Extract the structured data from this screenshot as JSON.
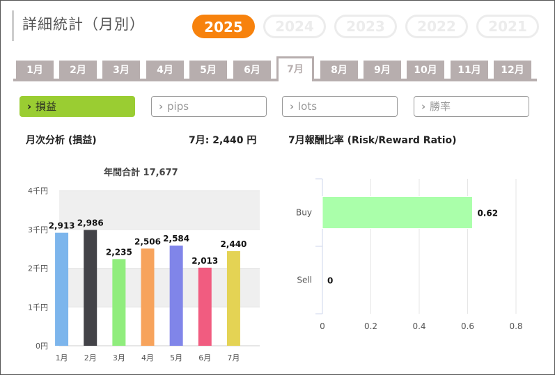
{
  "header": {
    "title": "詳細統計（月別）",
    "years": [
      {
        "label": "2025",
        "active": true
      },
      {
        "label": "2024",
        "active": false
      },
      {
        "label": "2023",
        "active": false
      },
      {
        "label": "2022",
        "active": false
      },
      {
        "label": "2021",
        "active": false
      }
    ]
  },
  "months": [
    "1月",
    "2月",
    "3月",
    "4月",
    "5月",
    "6月",
    "7月",
    "8月",
    "9月",
    "10月",
    "11月",
    "12月"
  ],
  "active_month_index": 6,
  "metrics": [
    {
      "label": "損益",
      "active": true
    },
    {
      "label": "pips",
      "active": false
    },
    {
      "label": "lots",
      "active": false
    },
    {
      "label": "勝率",
      "active": false
    }
  ],
  "left_panel": {
    "heading": "月次分析 (損益)",
    "month_value": "7月:  2,440 円",
    "annual_total": "年間合計 17,677"
  },
  "right_panel": {
    "heading": "7月報酬比率 (Risk/Reward Ratio)"
  },
  "chart_data": [
    {
      "type": "bar",
      "categories": [
        "1月",
        "2月",
        "3月",
        "4月",
        "5月",
        "6月",
        "7月"
      ],
      "values": [
        2913,
        2986,
        2235,
        2506,
        2584,
        2013,
        2440
      ],
      "value_labels": [
        "2,913",
        "2,986",
        "2,235",
        "2,506",
        "2,584",
        "2,013",
        "2,440"
      ],
      "colors": [
        "#7cb5ec",
        "#434348",
        "#90ed7d",
        "#f7a35c",
        "#8085e9",
        "#f15c80",
        "#e4d354"
      ],
      "ylim": [
        0,
        4000
      ],
      "y_ticks": [
        0,
        1000,
        2000,
        3000,
        4000
      ],
      "y_tick_labels": [
        "0円",
        "1千円",
        "2千円",
        "3千円",
        "4千円"
      ],
      "grid": "banded"
    },
    {
      "type": "bar",
      "orientation": "horizontal",
      "categories": [
        "Buy",
        "Sell"
      ],
      "values": [
        0.62,
        0
      ],
      "value_labels": [
        "0.62",
        "0"
      ],
      "colors": [
        "#aaffaa",
        "#aaffaa"
      ],
      "xlim": [
        0,
        0.8
      ],
      "x_ticks": [
        0,
        0.2,
        0.4,
        0.6,
        0.8
      ],
      "x_tick_labels": [
        "0",
        "0.2",
        "0.4",
        "0.6",
        "0.8"
      ],
      "grid": true
    }
  ]
}
